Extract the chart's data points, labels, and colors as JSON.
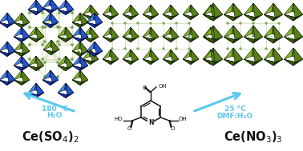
{
  "background_color": "#ffffff",
  "left_condition_line1": "180 °C",
  "left_condition_line2": "H₂O",
  "right_condition_line1": "25 °C",
  "right_condition_line2": "DMF/H₂O",
  "arrow_color": "#5bc8f0",
  "label_color": "#111111",
  "condition_color": "#5bc8f0",
  "blue_face_light": "#3366dd",
  "blue_face_mid": "#2244aa",
  "blue_face_dark": "#112266",
  "green_face_light": "#7aaa22",
  "green_face_mid": "#4a7010",
  "green_face_dark": "#1e3205",
  "linker_color": "#c8d8a0",
  "linker_dot": "#80aa60",
  "mol_color": "#111111",
  "figsize": [
    3.78,
    1.89
  ],
  "dpi": 100
}
